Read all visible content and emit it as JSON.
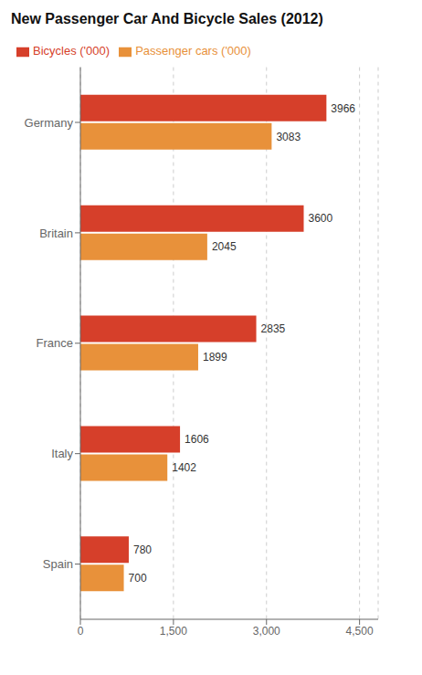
{
  "chart_data": {
    "type": "bar",
    "orientation": "horizontal",
    "title": "New Passenger Car And Bicycle Sales (2012)",
    "categories": [
      "Germany",
      "Britain",
      "France",
      "Italy",
      "Spain"
    ],
    "series": [
      {
        "name": "Bicycles ('000)",
        "color": "#d63f2a",
        "values": [
          3966,
          3600,
          2835,
          1606,
          780
        ]
      },
      {
        "name": "Passenger cars ('000)",
        "color": "#e8913a",
        "values": [
          3083,
          2045,
          1899,
          1402,
          700
        ]
      }
    ],
    "xlim": [
      0,
      4800
    ],
    "xticks": [
      0,
      {
        "value": 1500,
        "label": "1,500"
      },
      {
        "value": 3000,
        "label": "3,000"
      },
      {
        "value": 4500,
        "label": "4,500"
      }
    ],
    "grid": true,
    "legend": "upper left",
    "data_labels": true
  }
}
